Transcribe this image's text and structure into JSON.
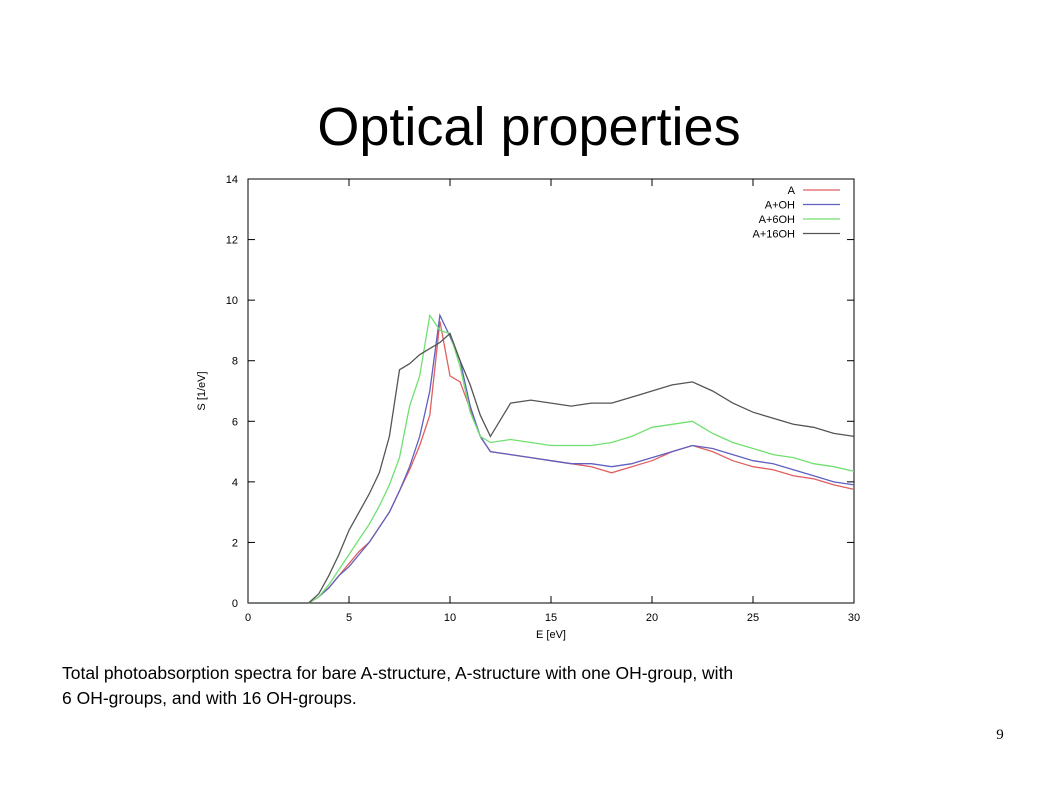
{
  "slide_title": "Optical properties",
  "caption": [
    "Total photoabsorption spectra for bare A-structure, A-structure with one OH-group, with",
    "6 OH-groups, and with 16 OH-groups."
  ],
  "page_number": "9",
  "chart_data": {
    "type": "line",
    "x_label": "E [eV]",
    "y_label": "S [1/eV]",
    "x": [
      0,
      1,
      2,
      3,
      3.5,
      4,
      4.5,
      5,
      5.5,
      6,
      6.5,
      7,
      7.5,
      8,
      8.5,
      9,
      9.5,
      10,
      10.5,
      11,
      11.5,
      12,
      13,
      14,
      15,
      16,
      17,
      18,
      19,
      20,
      21,
      22,
      23,
      24,
      25,
      26,
      27,
      28,
      29,
      30
    ],
    "series": [
      {
        "name": "A",
        "color": "#e06060",
        "values": [
          0,
          0,
          0,
          0,
          0.2,
          0.5,
          0.9,
          1.3,
          1.7,
          2.0,
          2.5,
          3.0,
          3.7,
          4.4,
          5.2,
          6.2,
          9.3,
          7.5,
          7.3,
          6.4,
          5.5,
          5.0,
          4.9,
          4.8,
          4.7,
          4.6,
          4.5,
          4.3,
          4.5,
          4.7,
          5.0,
          5.2,
          5.0,
          4.7,
          4.5,
          4.4,
          4.2,
          4.1,
          3.9,
          3.75
        ]
      },
      {
        "name": "A+OH",
        "color": "#6060c0",
        "values": [
          0,
          0,
          0,
          0,
          0.2,
          0.5,
          0.9,
          1.2,
          1.6,
          2.0,
          2.5,
          3.0,
          3.7,
          4.5,
          5.5,
          7.0,
          9.5,
          8.8,
          8.0,
          6.5,
          5.5,
          5.0,
          4.9,
          4.8,
          4.7,
          4.6,
          4.6,
          4.5,
          4.6,
          4.8,
          5.0,
          5.2,
          5.1,
          4.9,
          4.7,
          4.6,
          4.4,
          4.2,
          4.0,
          3.9
        ]
      },
      {
        "name": "A+6OH",
        "color": "#70e070",
        "values": [
          0,
          0,
          0,
          0,
          0.2,
          0.6,
          1.1,
          1.6,
          2.1,
          2.6,
          3.2,
          3.9,
          4.8,
          6.5,
          7.5,
          9.5,
          9.0,
          8.9,
          7.8,
          6.3,
          5.5,
          5.3,
          5.4,
          5.3,
          5.2,
          5.2,
          5.2,
          5.3,
          5.5,
          5.8,
          5.9,
          6.0,
          5.6,
          5.3,
          5.1,
          4.9,
          4.8,
          4.6,
          4.5,
          4.35
        ]
      },
      {
        "name": "A+16OH",
        "color": "#555555",
        "values": [
          0,
          0,
          0,
          0,
          0.3,
          0.9,
          1.6,
          2.4,
          3.0,
          3.6,
          4.3,
          5.5,
          7.7,
          7.9,
          8.2,
          8.4,
          8.6,
          8.9,
          8.0,
          7.2,
          6.2,
          5.5,
          6.6,
          6.7,
          6.6,
          6.5,
          6.6,
          6.6,
          6.8,
          7.0,
          7.2,
          7.3,
          7.0,
          6.6,
          6.3,
          6.1,
          5.9,
          5.8,
          5.6,
          5.5
        ]
      }
    ],
    "xlim": [
      0,
      30
    ],
    "xticks": [
      0,
      5,
      10,
      15,
      20,
      25,
      30
    ],
    "ylim": [
      0,
      14
    ],
    "yticks": [
      0,
      2,
      4,
      6,
      8,
      10,
      12,
      14
    ],
    "legend": "top-right"
  }
}
